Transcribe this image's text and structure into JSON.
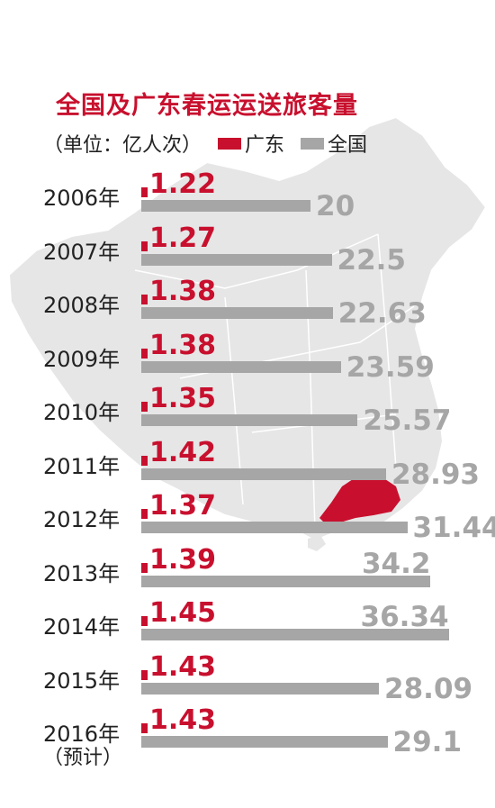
{
  "title": "全国及广东春运运送旅客量",
  "unit": "（单位：亿人次）",
  "legend": [
    {
      "name": "广东",
      "color": "#c8102e"
    },
    {
      "name": "全国",
      "color": "#a6a6a6"
    }
  ],
  "chart_data": {
    "type": "bar",
    "orientation": "horizontal",
    "title": "全国及广东春运运送旅客量",
    "unit": "（单位：亿人次）",
    "categories": [
      "2006年",
      "2007年",
      "2008年",
      "2009年",
      "2010年",
      "2011年",
      "2012年",
      "2013年",
      "2014年",
      "2015年",
      "2016年"
    ],
    "category_notes": {
      "2016年": "（预计）"
    },
    "series": [
      {
        "name": "广东",
        "color": "#c8102e",
        "values": [
          "1.22",
          "1.27",
          "1.38",
          "1.38",
          "1.35",
          "1.42",
          "1.37",
          "1.39",
          "1.45",
          "1.43",
          "1.43"
        ]
      },
      {
        "name": "全国",
        "color": "#a6a6a6",
        "values": [
          "20",
          "22.5",
          "22.63",
          "23.59",
          "25.57",
          "28.93",
          "31.44",
          "34.2",
          "36.34",
          "28.09",
          "29.1"
        ]
      }
    ],
    "legend_position": "top",
    "grid": false
  }
}
